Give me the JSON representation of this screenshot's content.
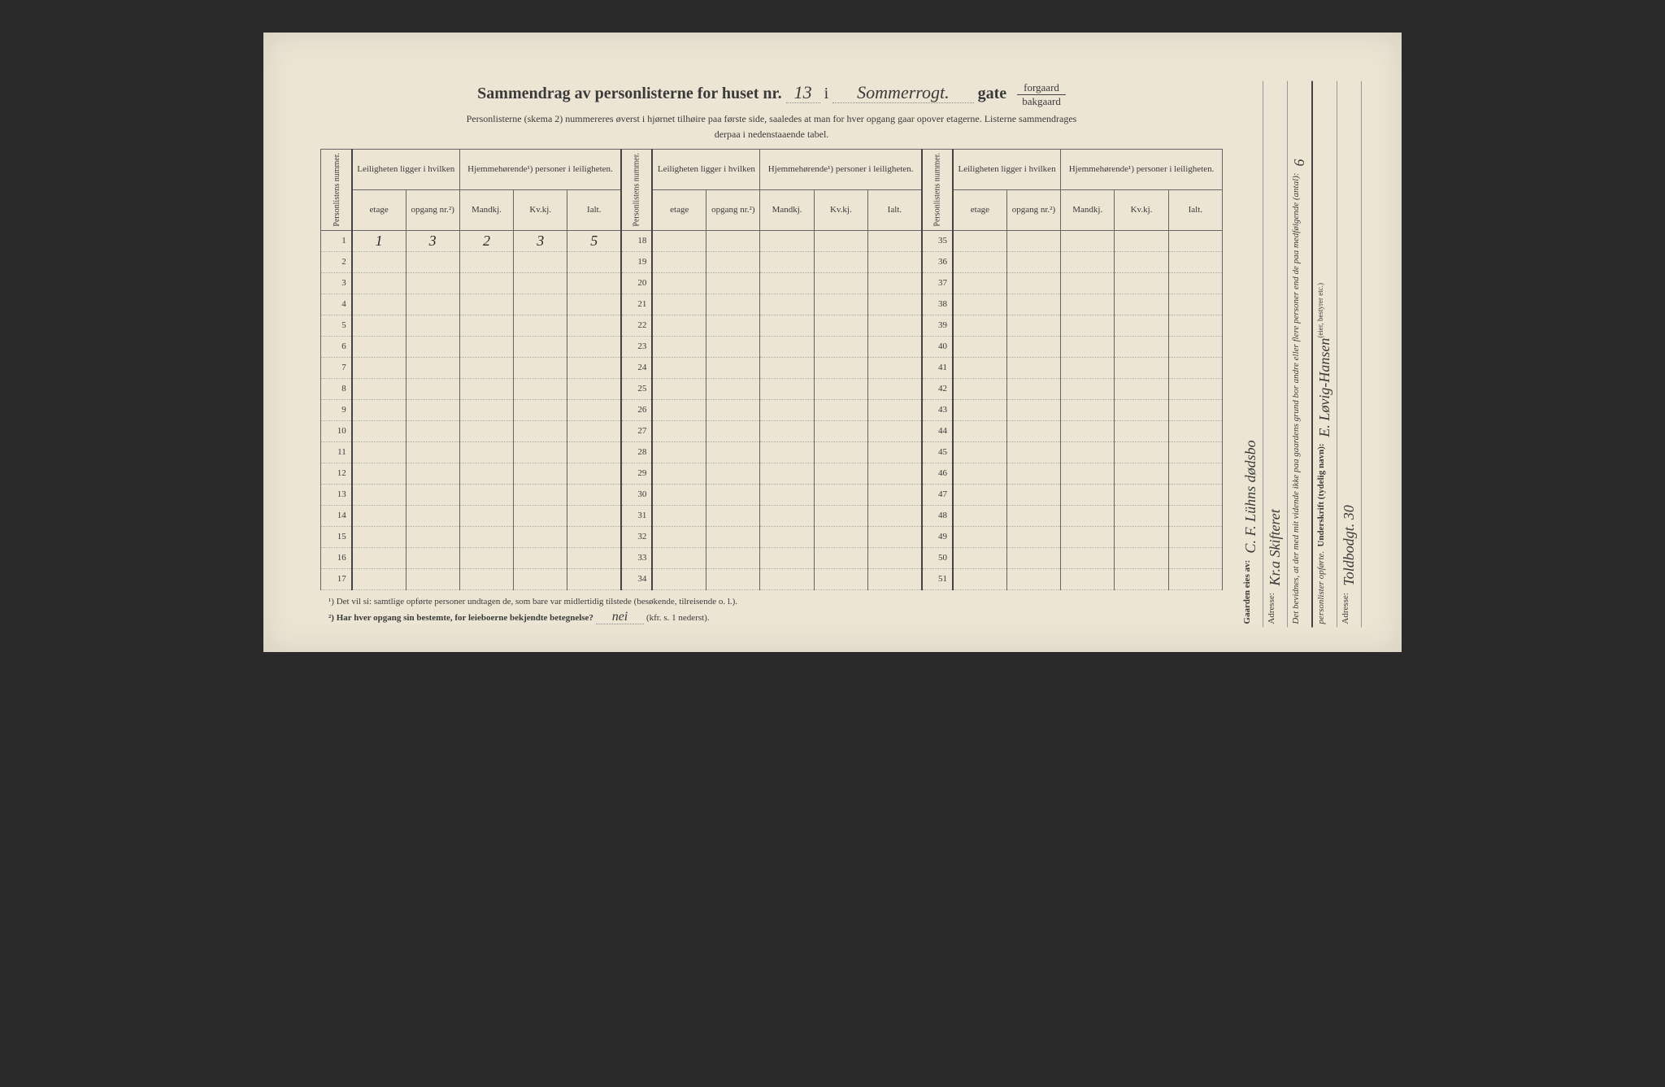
{
  "title": {
    "prefix": "Sammendrag av personlisterne for huset nr.",
    "house_nr": "13",
    "i": "i",
    "street_hand": "Sommerrogt.",
    "gate": "gate",
    "forgaard": "forgaard",
    "bakgaard": "bakgaard"
  },
  "subtitle": "Personlisterne (skema 2) nummereres øverst i hjørnet tilhøire paa første side, saaledes at man for hver opgang gaar opover etagerne.  Listerne sammendrages",
  "subtitle2": "derpaa i nedenstaaende tabel.",
  "headers": {
    "personlistens": "Personlistens nummer.",
    "leilighet": "Leiligheten ligger i hvilken",
    "hjemme": "Hjemmehørende¹) personer i leiligheten.",
    "etage": "etage",
    "opgang": "opgang nr.²)",
    "mandkj": "Mandkj.",
    "kvkj": "Kv.kj.",
    "ialt": "Ialt."
  },
  "row1": {
    "etage": "1",
    "opgang": "3",
    "mandkj": "2",
    "kvkj": "3",
    "ialt": "5"
  },
  "rows_g1": [
    1,
    2,
    3,
    4,
    5,
    6,
    7,
    8,
    9,
    10,
    11,
    12,
    13,
    14,
    15,
    16,
    17
  ],
  "rows_g2": [
    18,
    19,
    20,
    21,
    22,
    23,
    24,
    25,
    26,
    27,
    28,
    29,
    30,
    31,
    32,
    33,
    34
  ],
  "rows_g3": [
    35,
    36,
    37,
    38,
    39,
    40,
    41,
    42,
    43,
    44,
    45,
    46,
    47,
    48,
    49,
    50,
    51
  ],
  "footnotes": {
    "f1": "¹)  Det vil si: samtlige opførte personer undtagen de, som bare var midlertidig tilstede (besøkende, tilreisende o. l.).",
    "f2_label": "²)  Har hver opgang sin bestemte, for leieboerne bekjendte betegnelse?",
    "f2_hand": "nei",
    "f2_suffix": "(kfr. s. 1 nederst)."
  },
  "right": {
    "gaarden_eies": "Gaarden eies av:",
    "owner_hand": "C. F. Lühns dødsbo",
    "adresse1_label": "Adresse:",
    "adresse1_hand": "Kr.a Skifteret",
    "bevidnes": "Det bevidnes, at der med mit vidende ikke paa gaardens grund bor andre eller flere personer end de paa medfølgende (antal):",
    "antal": "6",
    "personlister": "personlister opførte.",
    "underskrift_label": "Underskrift (tydelig navn):",
    "underskrift_hand": "E. Løvig-Hansen",
    "bestyrer": "(eier, bestyrer etc.)",
    "adresse2_label": "Adresse:",
    "adresse2_hand": "Toldbodgt. 30"
  }
}
